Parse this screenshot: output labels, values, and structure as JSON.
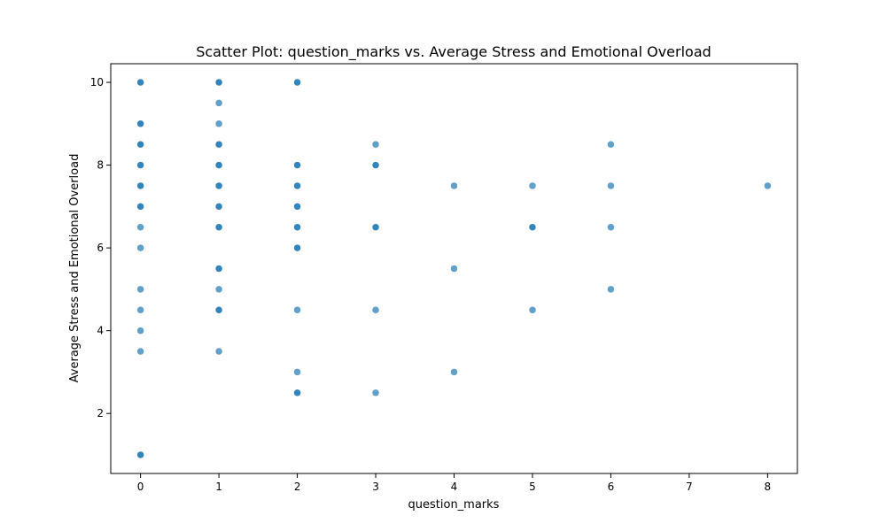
{
  "chart_data": {
    "type": "scatter",
    "title": "Scatter Plot: question_marks vs. Average Stress and Emotional Overload",
    "xlabel": "question_marks",
    "ylabel": "Average Stress and Emotional Overload",
    "xlim": [
      -0.38,
      8.38
    ],
    "ylim": [
      0.55,
      10.45
    ],
    "xticks": [
      0,
      1,
      2,
      3,
      4,
      5,
      6,
      7,
      8
    ],
    "yticks": [
      2,
      4,
      6,
      8,
      10
    ],
    "grid": false,
    "legend": "none",
    "marker_color": "#1f77b4",
    "marker_alpha": 0.7,
    "points": [
      [
        0,
        10
      ],
      [
        0,
        10
      ],
      [
        0,
        9
      ],
      [
        0,
        9
      ],
      [
        0,
        8.5
      ],
      [
        0,
        8.5
      ],
      [
        0,
        8
      ],
      [
        0,
        8
      ],
      [
        0,
        7.5
      ],
      [
        0,
        7.5
      ],
      [
        0,
        7
      ],
      [
        0,
        7
      ],
      [
        0,
        6.5
      ],
      [
        0,
        6
      ],
      [
        0,
        5
      ],
      [
        0,
        4.5
      ],
      [
        0,
        4
      ],
      [
        0,
        3.5
      ],
      [
        0,
        1
      ],
      [
        0,
        1
      ],
      [
        1,
        10
      ],
      [
        1,
        10
      ],
      [
        1,
        9.5
      ],
      [
        1,
        9
      ],
      [
        1,
        8.5
      ],
      [
        1,
        8.5
      ],
      [
        1,
        8
      ],
      [
        1,
        8
      ],
      [
        1,
        7.5
      ],
      [
        1,
        7.5
      ],
      [
        1,
        7
      ],
      [
        1,
        7
      ],
      [
        1,
        6.5
      ],
      [
        1,
        6.5
      ],
      [
        1,
        5.5
      ],
      [
        1,
        5.5
      ],
      [
        1,
        5
      ],
      [
        1,
        4.5
      ],
      [
        1,
        4.5
      ],
      [
        1,
        3.5
      ],
      [
        2,
        10
      ],
      [
        2,
        10
      ],
      [
        2,
        8
      ],
      [
        2,
        8
      ],
      [
        2,
        7.5
      ],
      [
        2,
        7.5
      ],
      [
        2,
        7
      ],
      [
        2,
        7
      ],
      [
        2,
        6.5
      ],
      [
        2,
        6.5
      ],
      [
        2,
        6
      ],
      [
        2,
        6
      ],
      [
        2,
        4.5
      ],
      [
        2,
        3
      ],
      [
        2,
        2.5
      ],
      [
        2,
        2.5
      ],
      [
        3,
        8.5
      ],
      [
        3,
        8
      ],
      [
        3,
        8
      ],
      [
        3,
        6.5
      ],
      [
        3,
        6.5
      ],
      [
        3,
        4.5
      ],
      [
        3,
        2.5
      ],
      [
        4,
        7.5
      ],
      [
        4,
        5.5
      ],
      [
        4,
        3
      ],
      [
        5,
        7.5
      ],
      [
        5,
        6.5
      ],
      [
        5,
        6.5
      ],
      [
        5,
        4.5
      ],
      [
        6,
        8.5
      ],
      [
        6,
        7.5
      ],
      [
        6,
        6.5
      ],
      [
        6,
        5
      ],
      [
        8,
        7.5
      ]
    ]
  }
}
